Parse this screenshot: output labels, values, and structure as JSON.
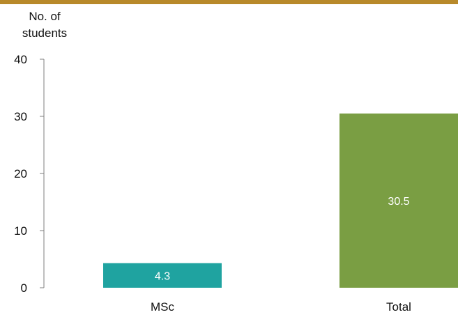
{
  "header": {
    "band_color": "#B8892A"
  },
  "chart_data": {
    "type": "bar",
    "categories": [
      "MSc",
      "Total"
    ],
    "values": [
      4.3,
      30.5
    ],
    "bar_colors": [
      "#1FA3A0",
      "#7A9E43"
    ],
    "value_labels": [
      "4.3",
      "30.5"
    ],
    "ylabel": "No. of students",
    "xlabel": "",
    "ylim": [
      0,
      40
    ],
    "yticks": [
      0,
      10,
      20,
      30,
      40
    ],
    "grid": false,
    "legend": "none"
  }
}
